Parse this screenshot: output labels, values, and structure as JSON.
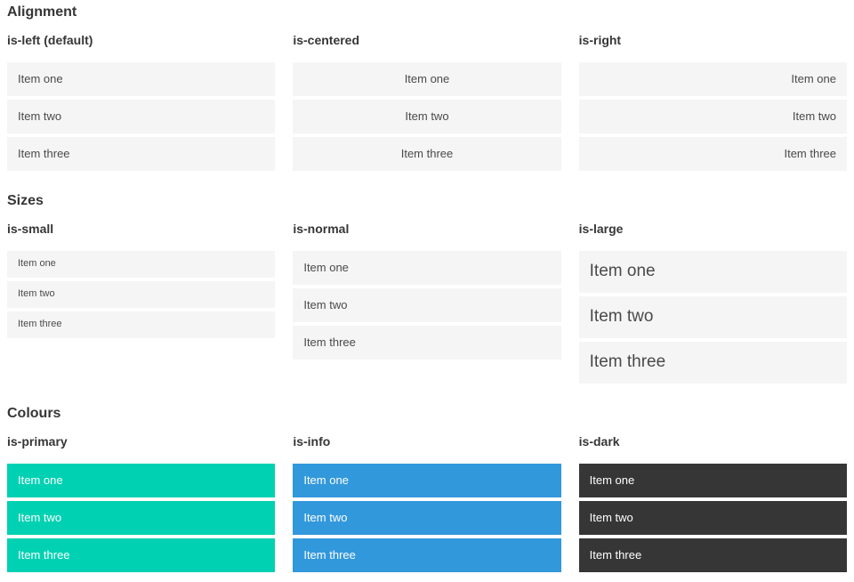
{
  "colors": {
    "primary": "#00d1b2",
    "info": "#3298dc",
    "dark": "#363636",
    "item_bg": "#f5f5f5",
    "heading_text": "#363636",
    "item_text": "#4a4a4a",
    "coloured_item_text": "#ffffff"
  },
  "sections": [
    {
      "title": "Alignment",
      "variants": [
        {
          "label": "is-left (default)",
          "items": [
            "Item one",
            "Item two",
            "Item three"
          ]
        },
        {
          "label": "is-centered",
          "items": [
            "Item one",
            "Item two",
            "Item three"
          ]
        },
        {
          "label": "is-right",
          "items": [
            "Item one",
            "Item two",
            "Item three"
          ]
        }
      ]
    },
    {
      "title": "Sizes",
      "variants": [
        {
          "label": "is-small",
          "items": [
            "Item one",
            "Item two",
            "Item three"
          ]
        },
        {
          "label": "is-normal",
          "items": [
            "Item one",
            "Item two",
            "Item three"
          ]
        },
        {
          "label": "is-large",
          "items": [
            "Item one",
            "Item two",
            "Item three"
          ]
        }
      ]
    },
    {
      "title": "Colours",
      "variants": [
        {
          "label": "is-primary",
          "items": [
            "Item one",
            "Item two",
            "Item three"
          ]
        },
        {
          "label": "is-info",
          "items": [
            "Item one",
            "Item two",
            "Item three"
          ]
        },
        {
          "label": "is-dark",
          "items": [
            "Item one",
            "Item two",
            "Item three"
          ]
        }
      ]
    }
  ]
}
